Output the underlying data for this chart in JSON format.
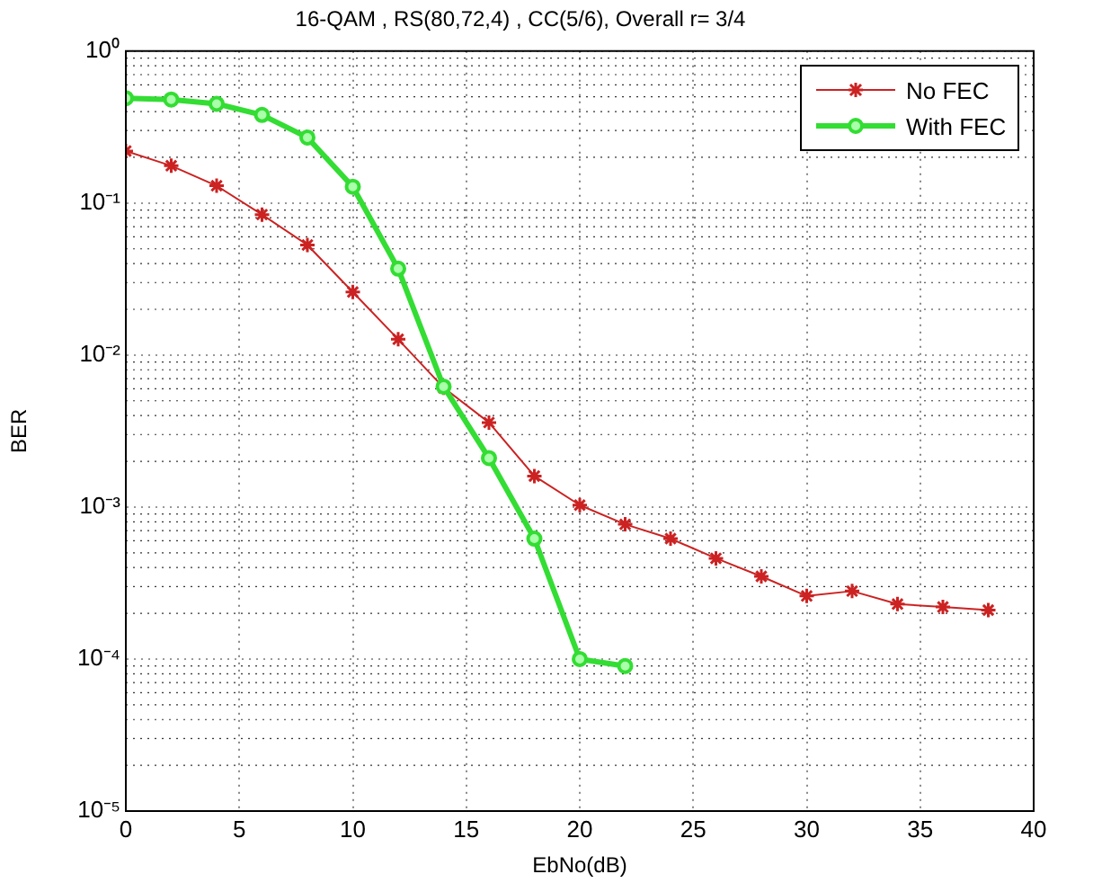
{
  "chart_data": {
    "type": "line",
    "title": "16-QAM , RS(80,72,4) , CC(5/6), Overall r= 3/4",
    "xlabel": "EbNo(dB)",
    "ylabel": "BER",
    "x": [
      0,
      2,
      4,
      6,
      8,
      10,
      12,
      14,
      16,
      18,
      20,
      22,
      24,
      26,
      28,
      30,
      32,
      34,
      36,
      38
    ],
    "series": [
      {
        "name": "No FEC",
        "color": "#cc2222",
        "marker": "cross",
        "values": [
          0.22,
          0.176,
          0.13,
          0.084,
          0.053,
          0.026,
          0.0127,
          0.0061,
          0.0036,
          0.0016,
          0.00103,
          0.00077,
          0.00062,
          0.00046,
          0.00035,
          0.00026,
          0.00028,
          0.00023,
          0.00022,
          0.00021
        ]
      },
      {
        "name": "With FEC",
        "color": "#33dd33",
        "marker": "circle",
        "x": [
          0,
          2,
          4,
          6,
          8,
          10,
          12,
          14,
          16,
          18,
          20,
          22
        ],
        "values": [
          0.49,
          0.48,
          0.45,
          0.38,
          0.27,
          0.128,
          0.037,
          0.0062,
          0.0021,
          0.00062,
          0.0001,
          9e-05
        ]
      }
    ],
    "log": "y",
    "xlim": [
      0,
      40
    ],
    "xticks": [
      0,
      5,
      10,
      15,
      20,
      25,
      30,
      35,
      40
    ],
    "ylim": [
      1e-05,
      1
    ],
    "yticks": [
      {
        "value": 1e-05,
        "label": "10⁻⁵"
      },
      {
        "value": 0.0001,
        "label": "10⁻⁴"
      },
      {
        "value": 0.001,
        "label": "10⁻³"
      },
      {
        "value": 0.01,
        "label": "10⁻²"
      },
      {
        "value": 0.1,
        "label": "10⁻¹"
      },
      {
        "value": 1,
        "label": "10⁰"
      }
    ],
    "grid": true,
    "legend": "top right",
    "line_style": "solid"
  }
}
